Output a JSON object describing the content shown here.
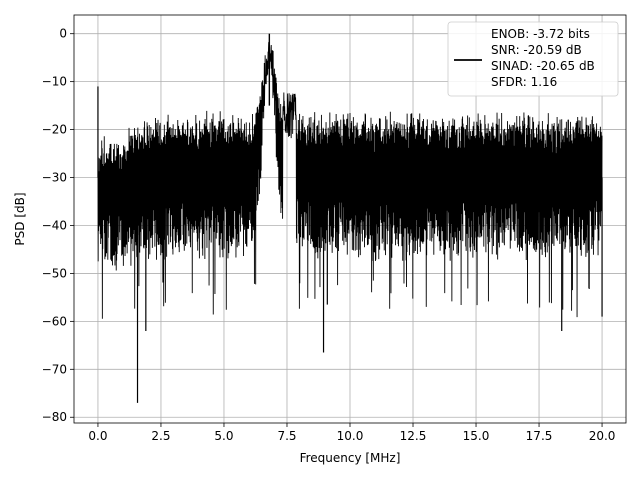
{
  "chart_data": {
    "type": "line",
    "title": "",
    "xlabel": "Frequency [MHz]",
    "ylabel": "PSD [dB]",
    "xlim": [
      -0.95,
      20.95
    ],
    "ylim": [
      -81.2,
      3.9
    ],
    "xticks": [
      0.0,
      2.5,
      5.0,
      7.5,
      10.0,
      12.5,
      15.0,
      17.5,
      20.0
    ],
    "xtick_labels": [
      "0.0",
      "2.5",
      "5.0",
      "7.5",
      "10.0",
      "12.5",
      "15.0",
      "17.5",
      "20.0"
    ],
    "yticks": [
      0,
      -10,
      -20,
      -30,
      -40,
      -50,
      -60,
      -70,
      -80
    ],
    "ytick_labels": [
      "0",
      "−10",
      "−20",
      "−30",
      "−40",
      "−50",
      "−60",
      "−70",
      "−80"
    ],
    "grid": true,
    "legend_position": "upper right",
    "series": [
      {
        "name": "ENOB: -3.72 bits\nSNR: -20.59 dB\nSINAD: -20.65 dB\nSFDR: 1.16",
        "color": "#000000",
        "description": "dense noisy PSD trace",
        "noise_floor": {
          "upper": -18,
          "lower": -45
        },
        "peak": {
          "x": 6.8,
          "y": 0
        },
        "spikes": [
          {
            "x": 0.0,
            "y": -11
          },
          {
            "x": 1.57,
            "y": -77
          },
          {
            "x": 1.9,
            "y": -62
          },
          {
            "x": 8.95,
            "y": -66.5
          },
          {
            "x": 9.1,
            "y": -56.5
          },
          {
            "x": 18.4,
            "y": -62
          },
          {
            "x": 20.0,
            "y": -59
          }
        ]
      }
    ],
    "legend": [
      "ENOB: -3.72 bits",
      "SNR: -20.59 dB",
      "SINAD: -20.65 dB",
      "SFDR: 1.16"
    ]
  }
}
